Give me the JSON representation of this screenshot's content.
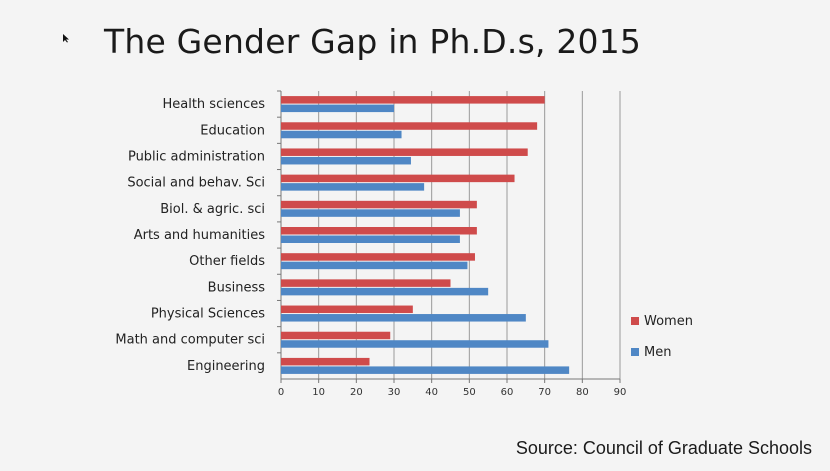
{
  "slide": {
    "title": "The Gender Gap in Ph.D.s, 2015",
    "source": "Source: Council of Graduate Schools"
  },
  "colors": {
    "women": "#cf4b4b",
    "men": "#4f87c5",
    "grid": "#9a9a9a",
    "axis": "#777777"
  },
  "chart_data": {
    "type": "bar",
    "orientation": "horizontal",
    "title": "The Gender Gap in Ph.D.s, 2015",
    "xlabel": "",
    "ylabel": "",
    "xlim": [
      0,
      90
    ],
    "xticks": [
      0,
      10,
      20,
      30,
      40,
      50,
      60,
      70,
      80,
      90
    ],
    "grid": true,
    "legend_position": "right",
    "categories": [
      "Health sciences",
      "Education",
      "Public administration",
      "Social and behav. Sci",
      "Biol. & agric. sci",
      "Arts and humanities",
      "Other fields",
      "Business",
      "Physical Sciences",
      "Math and computer sci",
      "Engineering"
    ],
    "series": [
      {
        "name": "Women",
        "color": "#cf4b4b",
        "values": [
          70,
          68,
          65.5,
          62,
          52,
          52,
          51.5,
          45,
          35,
          29,
          23.5
        ]
      },
      {
        "name": "Men",
        "color": "#4f87c5",
        "values": [
          30,
          32,
          34.5,
          38,
          47.5,
          47.5,
          49.5,
          55,
          65,
          71,
          76.5
        ]
      }
    ]
  }
}
